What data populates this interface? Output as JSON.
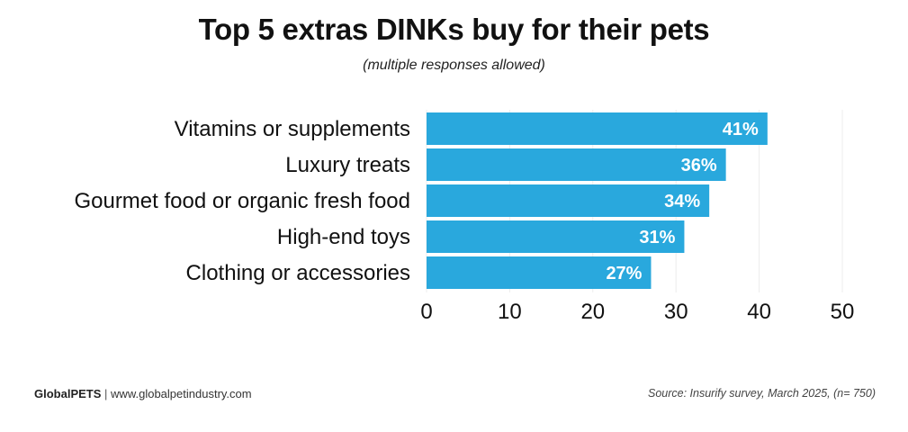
{
  "chart_data": {
    "type": "bar",
    "orientation": "horizontal",
    "title": "Top 5 extras DINKs buy for their pets",
    "subtitle": "(multiple responses allowed)",
    "categories": [
      "Vitamins or supplements",
      "Luxury treats",
      "Gourmet food or organic fresh food",
      "High-end toys",
      "Clothing or accessories"
    ],
    "values": [
      41,
      36,
      34,
      31,
      27
    ],
    "value_labels": [
      "41%",
      "36%",
      "34%",
      "31%",
      "27%"
    ],
    "xlim": [
      0,
      50
    ],
    "xticks": [
      0,
      10,
      20,
      30,
      40,
      50
    ],
    "xlabel": "",
    "ylabel": "",
    "grid": "vertical",
    "bar_color": "#29a8dd"
  },
  "footer": {
    "brand": "GlobalPETS",
    "separator": "|",
    "website": "www.globalpetindustry.com",
    "source": "Source: Insurify survey, March 2025, (n= 750)"
  },
  "colors": {
    "bar": "#29a8dd",
    "grid": "#ececec",
    "label_on_bar": "#ffffff",
    "text": "#111111"
  }
}
